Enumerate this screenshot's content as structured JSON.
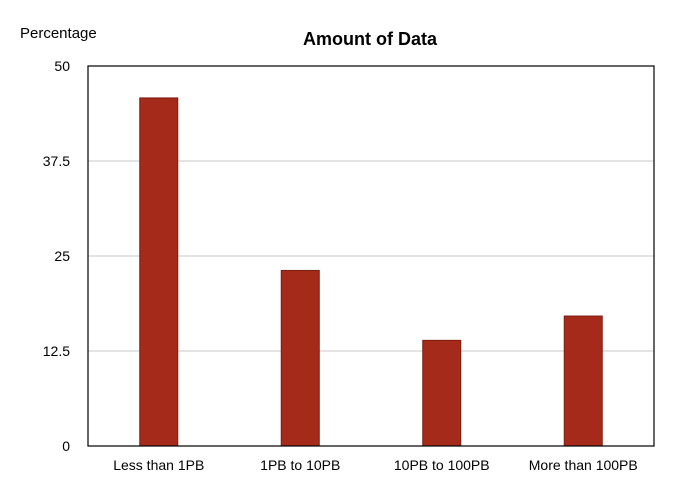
{
  "chart_data": {
    "type": "bar",
    "title": "Amount of Data",
    "xlabel": "",
    "ylabel": "Percentage",
    "categories": [
      "Less than 1PB",
      "1PB to 10PB",
      "10PB to 100PB",
      "More than 100PB"
    ],
    "values": [
      45.8,
      23.1,
      13.9,
      17.1
    ],
    "ylim": [
      0,
      50
    ],
    "yticks": [
      0,
      12.5,
      25,
      37.5,
      50
    ],
    "ytick_labels": [
      "0",
      "12.5",
      "25",
      "37.5",
      "50"
    ],
    "grid": true,
    "legend": "none",
    "colors": {
      "bar_fill": "#a52a1a",
      "bar_edge": "#7a1d12",
      "grid": "#c8c8c8",
      "frame": "#000000"
    }
  }
}
